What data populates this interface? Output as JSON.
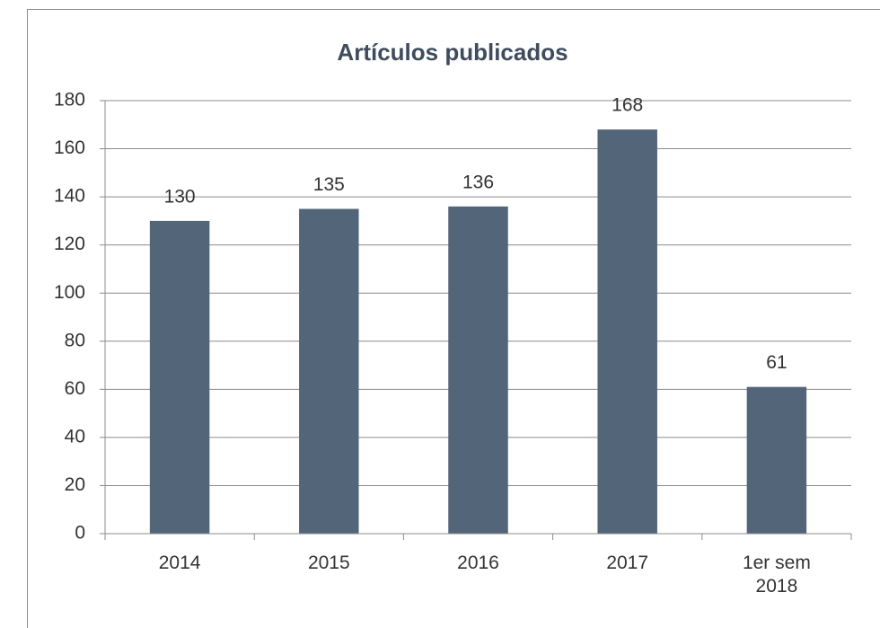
{
  "chart_data": {
    "type": "bar",
    "title": "Artículos publicados",
    "categories": [
      "2014",
      "2015",
      "2016",
      "2017",
      "1er sem 2018"
    ],
    "values": [
      130,
      135,
      136,
      168,
      61
    ],
    "color": "#536579",
    "ylim": [
      0,
      180
    ],
    "yticks": [
      0,
      20,
      40,
      60,
      80,
      100,
      120,
      140,
      160,
      180
    ],
    "grid": true
  }
}
